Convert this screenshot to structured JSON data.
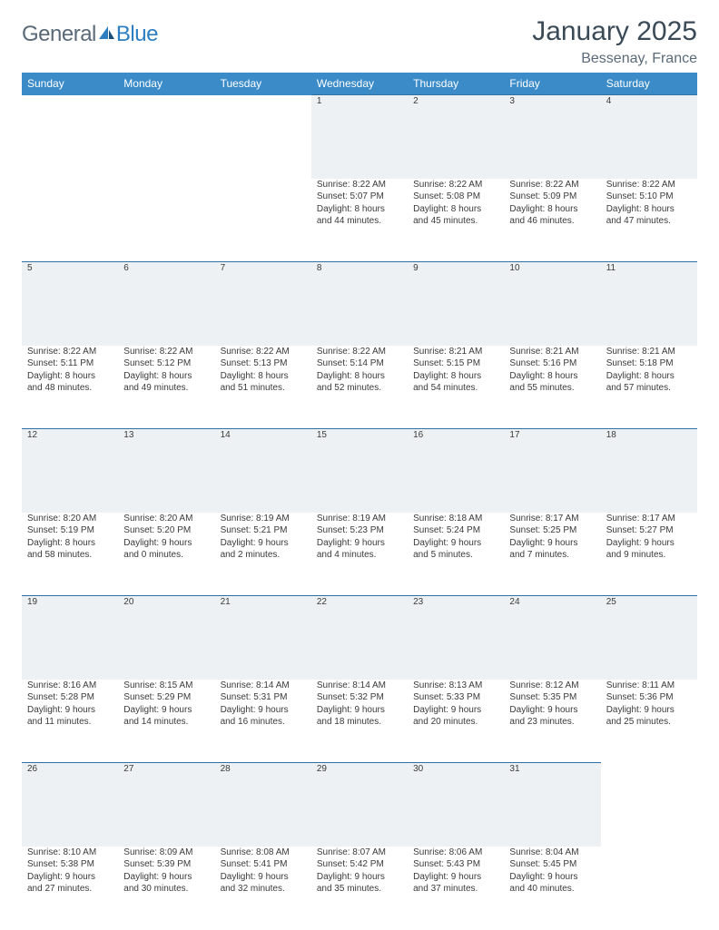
{
  "brand": {
    "general": "General",
    "blue": "Blue"
  },
  "title": "January 2025",
  "location": "Bessenay, France",
  "colors": {
    "header_bg": "#3b8bc9",
    "header_text": "#ffffff",
    "daynum_bg": "#eef1f3",
    "daynum_border": "#2e6fa5",
    "body_text": "#3a3a3a",
    "title_text": "#3b4a57",
    "subtitle_text": "#5a6a78",
    "logo_blue": "#2d7fc1",
    "logo_dark": "#1a4e7a"
  },
  "weekdays": [
    "Sunday",
    "Monday",
    "Tuesday",
    "Wednesday",
    "Thursday",
    "Friday",
    "Saturday"
  ],
  "weeks": [
    [
      {
        "n": "",
        "lines": []
      },
      {
        "n": "",
        "lines": []
      },
      {
        "n": "",
        "lines": []
      },
      {
        "n": "1",
        "lines": [
          "Sunrise: 8:22 AM",
          "Sunset: 5:07 PM",
          "Daylight: 8 hours",
          "and 44 minutes."
        ]
      },
      {
        "n": "2",
        "lines": [
          "Sunrise: 8:22 AM",
          "Sunset: 5:08 PM",
          "Daylight: 8 hours",
          "and 45 minutes."
        ]
      },
      {
        "n": "3",
        "lines": [
          "Sunrise: 8:22 AM",
          "Sunset: 5:09 PM",
          "Daylight: 8 hours",
          "and 46 minutes."
        ]
      },
      {
        "n": "4",
        "lines": [
          "Sunrise: 8:22 AM",
          "Sunset: 5:10 PM",
          "Daylight: 8 hours",
          "and 47 minutes."
        ]
      }
    ],
    [
      {
        "n": "5",
        "lines": [
          "Sunrise: 8:22 AM",
          "Sunset: 5:11 PM",
          "Daylight: 8 hours",
          "and 48 minutes."
        ]
      },
      {
        "n": "6",
        "lines": [
          "Sunrise: 8:22 AM",
          "Sunset: 5:12 PM",
          "Daylight: 8 hours",
          "and 49 minutes."
        ]
      },
      {
        "n": "7",
        "lines": [
          "Sunrise: 8:22 AM",
          "Sunset: 5:13 PM",
          "Daylight: 8 hours",
          "and 51 minutes."
        ]
      },
      {
        "n": "8",
        "lines": [
          "Sunrise: 8:22 AM",
          "Sunset: 5:14 PM",
          "Daylight: 8 hours",
          "and 52 minutes."
        ]
      },
      {
        "n": "9",
        "lines": [
          "Sunrise: 8:21 AM",
          "Sunset: 5:15 PM",
          "Daylight: 8 hours",
          "and 54 minutes."
        ]
      },
      {
        "n": "10",
        "lines": [
          "Sunrise: 8:21 AM",
          "Sunset: 5:16 PM",
          "Daylight: 8 hours",
          "and 55 minutes."
        ]
      },
      {
        "n": "11",
        "lines": [
          "Sunrise: 8:21 AM",
          "Sunset: 5:18 PM",
          "Daylight: 8 hours",
          "and 57 minutes."
        ]
      }
    ],
    [
      {
        "n": "12",
        "lines": [
          "Sunrise: 8:20 AM",
          "Sunset: 5:19 PM",
          "Daylight: 8 hours",
          "and 58 minutes."
        ]
      },
      {
        "n": "13",
        "lines": [
          "Sunrise: 8:20 AM",
          "Sunset: 5:20 PM",
          "Daylight: 9 hours",
          "and 0 minutes."
        ]
      },
      {
        "n": "14",
        "lines": [
          "Sunrise: 8:19 AM",
          "Sunset: 5:21 PM",
          "Daylight: 9 hours",
          "and 2 minutes."
        ]
      },
      {
        "n": "15",
        "lines": [
          "Sunrise: 8:19 AM",
          "Sunset: 5:23 PM",
          "Daylight: 9 hours",
          "and 4 minutes."
        ]
      },
      {
        "n": "16",
        "lines": [
          "Sunrise: 8:18 AM",
          "Sunset: 5:24 PM",
          "Daylight: 9 hours",
          "and 5 minutes."
        ]
      },
      {
        "n": "17",
        "lines": [
          "Sunrise: 8:17 AM",
          "Sunset: 5:25 PM",
          "Daylight: 9 hours",
          "and 7 minutes."
        ]
      },
      {
        "n": "18",
        "lines": [
          "Sunrise: 8:17 AM",
          "Sunset: 5:27 PM",
          "Daylight: 9 hours",
          "and 9 minutes."
        ]
      }
    ],
    [
      {
        "n": "19",
        "lines": [
          "Sunrise: 8:16 AM",
          "Sunset: 5:28 PM",
          "Daylight: 9 hours",
          "and 11 minutes."
        ]
      },
      {
        "n": "20",
        "lines": [
          "Sunrise: 8:15 AM",
          "Sunset: 5:29 PM",
          "Daylight: 9 hours",
          "and 14 minutes."
        ]
      },
      {
        "n": "21",
        "lines": [
          "Sunrise: 8:14 AM",
          "Sunset: 5:31 PM",
          "Daylight: 9 hours",
          "and 16 minutes."
        ]
      },
      {
        "n": "22",
        "lines": [
          "Sunrise: 8:14 AM",
          "Sunset: 5:32 PM",
          "Daylight: 9 hours",
          "and 18 minutes."
        ]
      },
      {
        "n": "23",
        "lines": [
          "Sunrise: 8:13 AM",
          "Sunset: 5:33 PM",
          "Daylight: 9 hours",
          "and 20 minutes."
        ]
      },
      {
        "n": "24",
        "lines": [
          "Sunrise: 8:12 AM",
          "Sunset: 5:35 PM",
          "Daylight: 9 hours",
          "and 23 minutes."
        ]
      },
      {
        "n": "25",
        "lines": [
          "Sunrise: 8:11 AM",
          "Sunset: 5:36 PM",
          "Daylight: 9 hours",
          "and 25 minutes."
        ]
      }
    ],
    [
      {
        "n": "26",
        "lines": [
          "Sunrise: 8:10 AM",
          "Sunset: 5:38 PM",
          "Daylight: 9 hours",
          "and 27 minutes."
        ]
      },
      {
        "n": "27",
        "lines": [
          "Sunrise: 8:09 AM",
          "Sunset: 5:39 PM",
          "Daylight: 9 hours",
          "and 30 minutes."
        ]
      },
      {
        "n": "28",
        "lines": [
          "Sunrise: 8:08 AM",
          "Sunset: 5:41 PM",
          "Daylight: 9 hours",
          "and 32 minutes."
        ]
      },
      {
        "n": "29",
        "lines": [
          "Sunrise: 8:07 AM",
          "Sunset: 5:42 PM",
          "Daylight: 9 hours",
          "and 35 minutes."
        ]
      },
      {
        "n": "30",
        "lines": [
          "Sunrise: 8:06 AM",
          "Sunset: 5:43 PM",
          "Daylight: 9 hours",
          "and 37 minutes."
        ]
      },
      {
        "n": "31",
        "lines": [
          "Sunrise: 8:04 AM",
          "Sunset: 5:45 PM",
          "Daylight: 9 hours",
          "and 40 minutes."
        ]
      },
      {
        "n": "",
        "lines": []
      }
    ]
  ]
}
